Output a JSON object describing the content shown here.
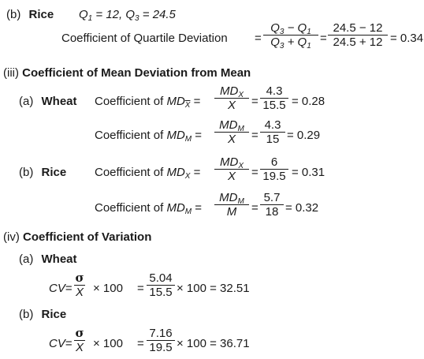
{
  "rice_quartile": {
    "label_b": "(b)",
    "label_rice": "Rice",
    "given": "Q1 = 12, Q3 = 24.5",
    "coeff_label": "Coefficient of Quartile Deviation",
    "num": "Q3 − Q1",
    "den": "Q3 + Q1",
    "num_val": "24.5 − 12",
    "den_val": "24.5 + 12",
    "result": "= 0.34"
  },
  "section3": {
    "num": "(iii)",
    "heading": "Coefficient of Mean Deviation from Mean"
  },
  "wheat_md": {
    "label_a": "(a)",
    "label_wheat": "Wheat",
    "coeff_text": "Coefficient of",
    "line1": {
      "num_sym": "MDX",
      "den_sym": "X",
      "num_val": "4.3",
      "den_val": "15.5",
      "result": "= 0.28"
    },
    "line2": {
      "num_sym": "MDM",
      "den_sym": "X",
      "num_val": "4.3",
      "den_val": "15",
      "result": "= 0.29"
    }
  },
  "rice_md": {
    "label_b": "(b)",
    "label_rice": "Rice",
    "coeff_text": "Coefficient of",
    "line1": {
      "num_sym": "MDX",
      "den_sym": "X",
      "num_val": "6",
      "den_val": "19.5",
      "result": "= 0.31"
    },
    "line2": {
      "num_sym": "MDM",
      "den_sym": "M",
      "num_val": "5.7",
      "den_val": "18",
      "result": "= 0.32"
    }
  },
  "section4": {
    "num": "(iv)",
    "heading": "Coefficient of Variation"
  },
  "wheat_cv": {
    "label_a": "(a)",
    "label_wheat": "Wheat",
    "cv": "CV",
    "sigma": "σ",
    "xbar": "X",
    "times100": "× 100",
    "num_val": "5.04",
    "den_val": "15.5",
    "result": "× 100 = 32.51"
  },
  "rice_cv": {
    "label_b": "(b)",
    "label_rice": "Rice",
    "cv": "CV",
    "sigma": "σ",
    "xbar": "X",
    "times100": "× 100",
    "num_val": "7.16",
    "den_val": "19.5",
    "result": "× 100 = 36.71"
  }
}
